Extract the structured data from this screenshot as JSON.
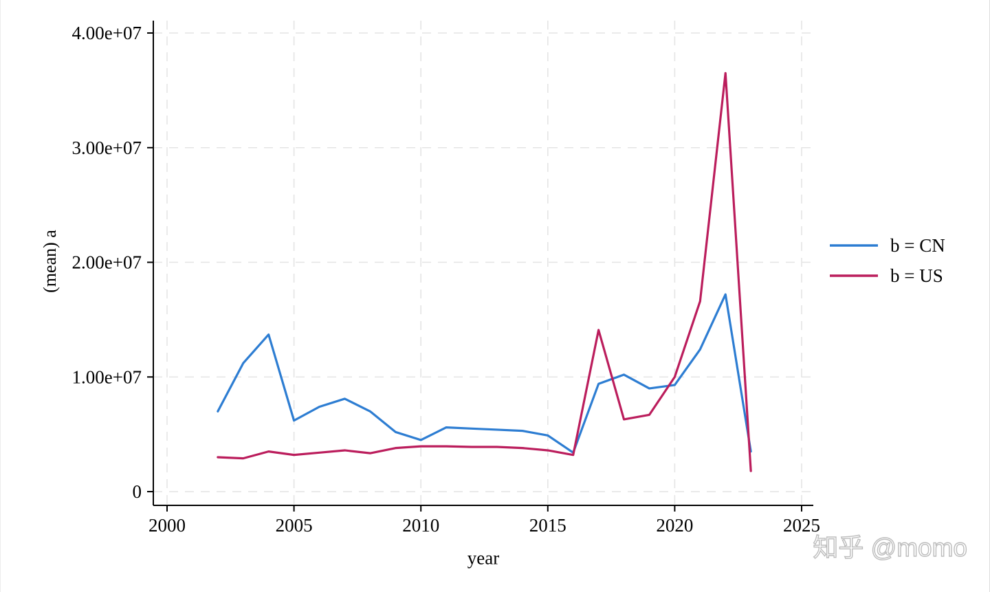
{
  "watermark": {
    "text": "知乎 @momo",
    "color": "#bcbcbc"
  },
  "axes": {
    "xlabel": "year",
    "ylabel": "(mean) a",
    "axis_color": "#000000"
  },
  "chart_data": {
    "type": "line",
    "title": "",
    "xlabel": "year",
    "ylabel": "(mean) a",
    "x": [
      2002,
      2003,
      2004,
      2005,
      2006,
      2007,
      2008,
      2009,
      2010,
      2011,
      2012,
      2013,
      2014,
      2015,
      2016,
      2017,
      2018,
      2019,
      2020,
      2021,
      2022,
      2023
    ],
    "series": [
      {
        "name": "b = CN",
        "color": "#2d7dd2",
        "values": [
          7000000,
          11200000,
          13700000,
          6200000,
          7400000,
          8100000,
          7000000,
          5200000,
          4500000,
          5600000,
          5500000,
          5400000,
          5300000,
          4900000,
          3400000,
          9400000,
          10200000,
          9000000,
          9300000,
          12400000,
          17200000,
          3500000
        ]
      },
      {
        "name": "b = US",
        "color": "#bb1d5c",
        "values": [
          3000000,
          2900000,
          3500000,
          3200000,
          3400000,
          3600000,
          3350000,
          3800000,
          3950000,
          3950000,
          3900000,
          3900000,
          3800000,
          3600000,
          3200000,
          14100000,
          6300000,
          6700000,
          10000000,
          16600000,
          36500000,
          1800000
        ]
      }
    ],
    "xlim": [
      1999.5,
      2025.5
    ],
    "ylim": [
      0,
      41000000
    ],
    "x_ticks": [
      2000,
      2005,
      2010,
      2015,
      2020,
      2025
    ],
    "y_ticks": [
      {
        "value": 0,
        "label": "0"
      },
      {
        "value": 10000000,
        "label": "1.00e+07"
      },
      {
        "value": 20000000,
        "label": "2.00e+07"
      },
      {
        "value": 30000000,
        "label": "3.00e+07"
      },
      {
        "value": 40000000,
        "label": "4.00e+07"
      }
    ],
    "grid": true,
    "grid_color": "#e4e4e4",
    "legend_position": "right-outside"
  }
}
